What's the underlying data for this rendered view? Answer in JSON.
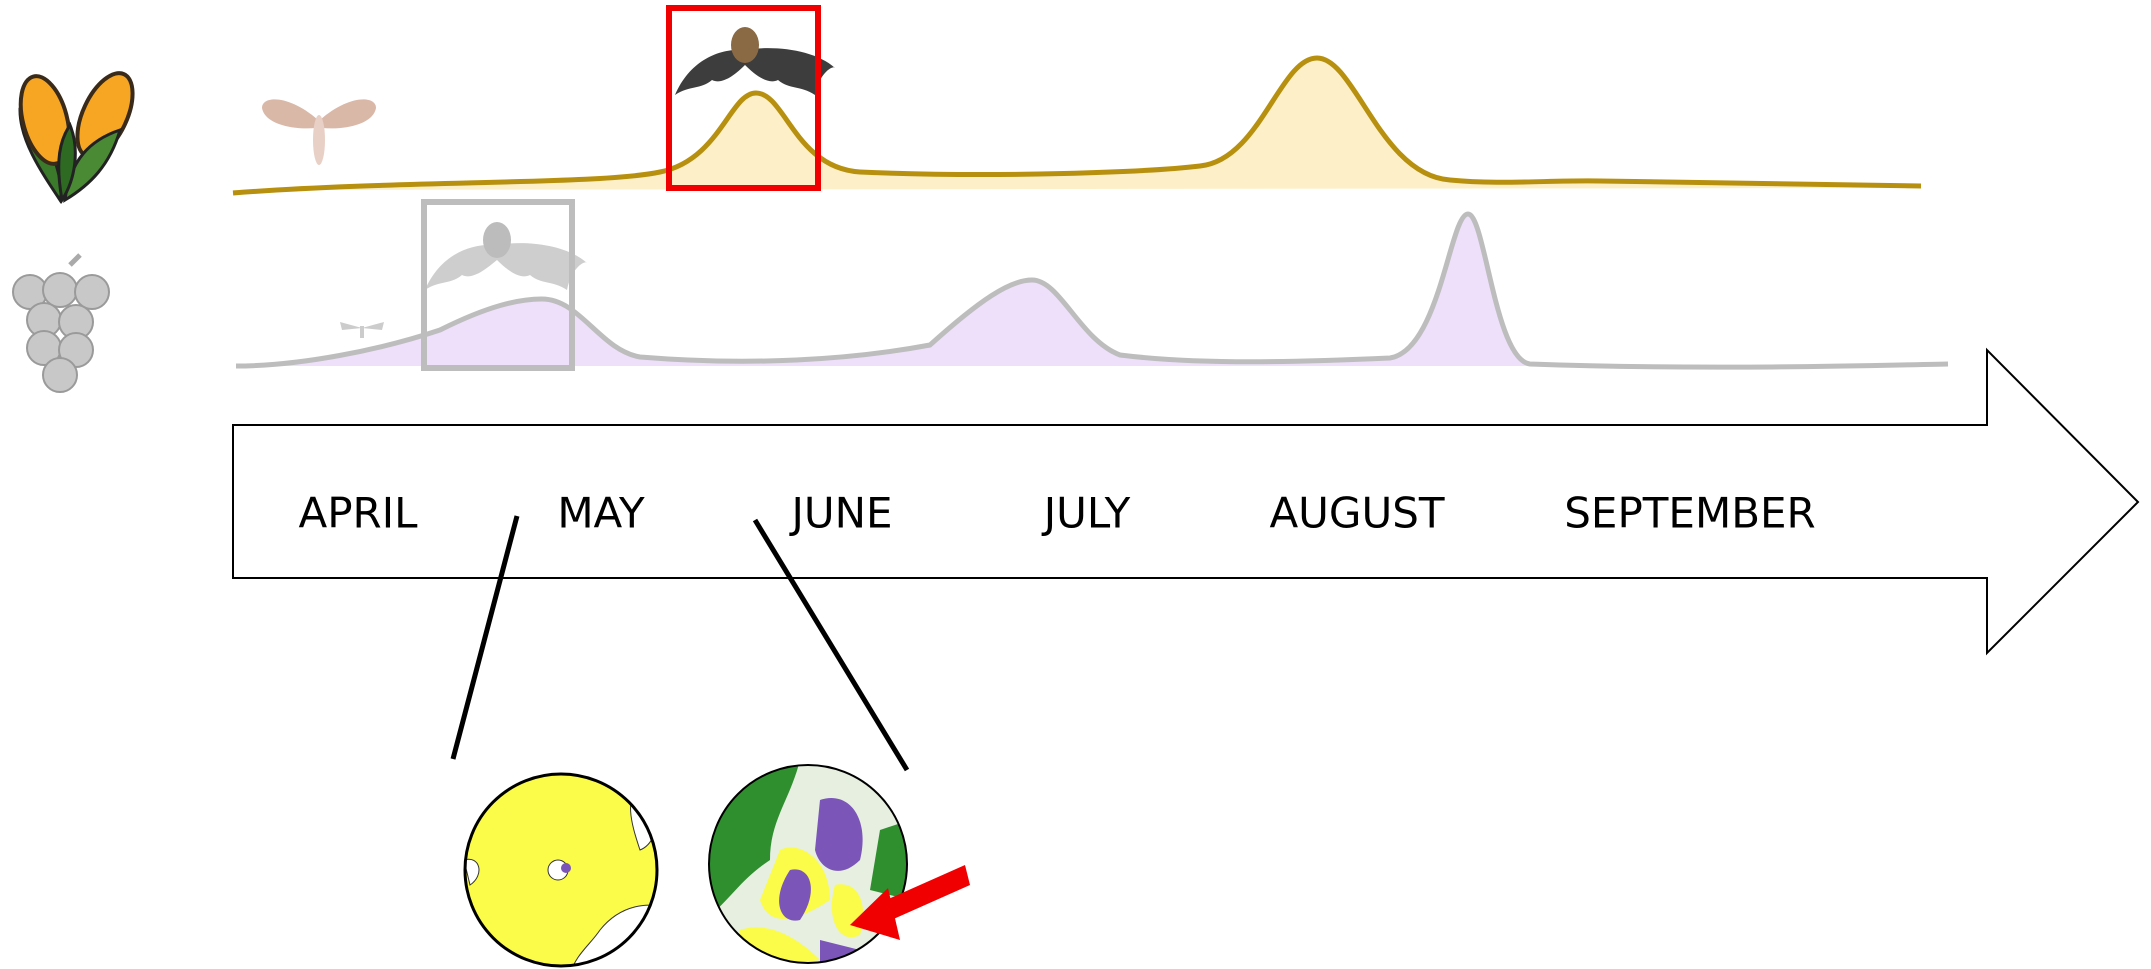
{
  "timeline": {
    "months": [
      "APRIL",
      "MAY",
      "JUNE",
      "JULY",
      "AUGUST",
      "SEPTEMBER"
    ]
  }
}
